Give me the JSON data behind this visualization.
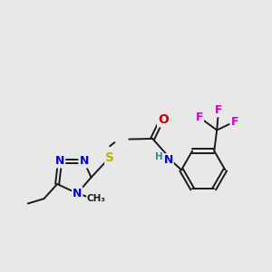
{
  "background_color": "#e8e8e8",
  "bond_color": "#1a1a1a",
  "colors": {
    "N": "#0000cc",
    "O": "#cc0000",
    "S": "#b8b800",
    "F": "#cc00cc",
    "C": "#1a1a1a",
    "H": "#2d8b8b"
  },
  "font_size": 9,
  "font_size_small": 7.5,
  "lw": 1.4
}
